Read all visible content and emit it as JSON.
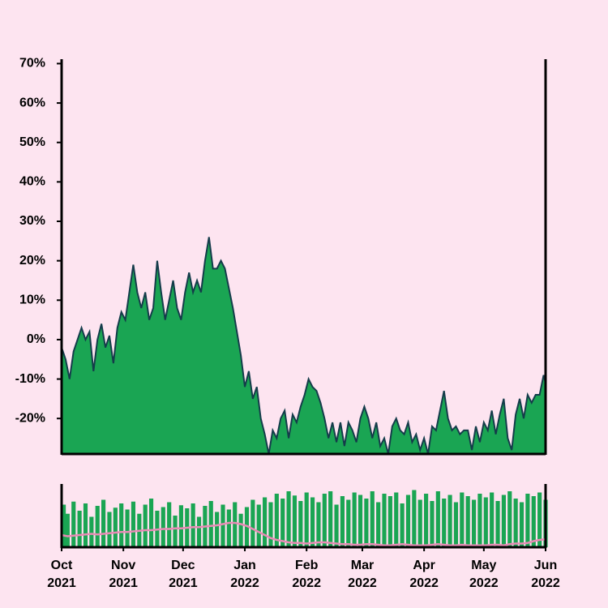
{
  "chart_data": [
    {
      "type": "area",
      "color": "#1aa553",
      "line_color": "#143c4a",
      "xlim": [
        0,
        243
      ],
      "ylim": [
        -29,
        70.5
      ],
      "yticks": [
        {
          "value": -20,
          "label": "-20%"
        },
        {
          "value": -10,
          "label": "-10%"
        },
        {
          "value": 0,
          "label": "0%"
        },
        {
          "value": 10,
          "label": "10%"
        },
        {
          "value": 20,
          "label": "20%"
        },
        {
          "value": 30,
          "label": "30%"
        },
        {
          "value": 40,
          "label": "40%"
        },
        {
          "value": 50,
          "label": "50%"
        },
        {
          "value": 60,
          "label": "60%"
        },
        {
          "value": 70,
          "label": "70%"
        }
      ],
      "x": [
        0,
        2,
        4,
        6,
        8,
        10,
        12,
        14,
        16,
        18,
        20,
        22,
        24,
        26,
        28,
        30,
        32,
        34,
        36,
        38,
        40,
        42,
        44,
        46,
        48,
        50,
        52,
        54,
        56,
        58,
        60,
        62,
        64,
        66,
        68,
        70,
        72,
        74,
        76,
        78,
        80,
        82,
        84,
        86,
        88,
        90,
        92,
        94,
        96,
        98,
        100,
        102,
        104,
        106,
        108,
        110,
        112,
        114,
        116,
        118,
        120,
        122,
        124,
        126,
        128,
        130,
        132,
        134,
        136,
        138,
        140,
        142,
        144,
        146,
        148,
        150,
        152,
        154,
        156,
        158,
        160,
        162,
        164,
        166,
        168,
        170,
        172,
        174,
        176,
        178,
        180,
        182,
        184,
        186,
        188,
        190,
        192,
        194,
        196,
        198,
        200,
        202,
        204,
        206,
        208,
        210,
        212,
        214,
        216,
        218,
        220,
        222,
        224,
        226,
        228,
        230,
        232,
        234,
        236,
        238,
        240,
        242,
        243
      ],
      "values": [
        -2,
        -5,
        -10,
        -3,
        0,
        3,
        0,
        2,
        -8,
        0,
        4,
        -2,
        1,
        -6,
        3,
        7,
        5,
        12,
        19,
        12,
        8,
        12,
        5,
        8,
        20,
        12,
        5,
        10,
        15,
        8,
        5,
        12,
        17,
        12,
        15,
        12,
        20,
        26,
        18,
        18,
        20,
        18,
        13,
        8,
        2,
        -4,
        -12,
        -8,
        -15,
        -12,
        -20,
        -24,
        -29,
        -23,
        -25,
        -20,
        -18,
        -25,
        -19,
        -21,
        -17,
        -14,
        -10,
        -12,
        -13,
        -16,
        -20,
        -25,
        -21,
        -26,
        -21,
        -27,
        -21,
        -23,
        -26,
        -20,
        -17,
        -20,
        -25,
        -21,
        -27,
        -25,
        -29,
        -22,
        -20,
        -23,
        -24,
        -21,
        -26,
        -24,
        -28,
        -25,
        -29,
        -22,
        -23,
        -18,
        -13,
        -20,
        -23,
        -22,
        -24,
        -23,
        -23,
        -28,
        -22,
        -26,
        -21,
        -23,
        -18,
        -24,
        -19,
        -15,
        -25,
        -28,
        -19,
        -15,
        -20,
        -14,
        -16,
        -14,
        -14,
        -9,
        -11
      ]
    },
    {
      "type": "bar",
      "xlim": [
        0,
        243
      ],
      "ylim": [
        0,
        100
      ],
      "xticks": [
        {
          "value": 0,
          "label": "Oct 2021"
        },
        {
          "value": 31,
          "label": "Nov 2021"
        },
        {
          "value": 61,
          "label": "Dec 2021"
        },
        {
          "value": 92,
          "label": "Jan 2022"
        },
        {
          "value": 123,
          "label": "Feb 2022"
        },
        {
          "value": 151,
          "label": "Mar 2022"
        },
        {
          "value": 182,
          "label": "Apr 2022"
        },
        {
          "value": 212,
          "label": "May 2022"
        },
        {
          "value": 243,
          "label": "Jun 2022"
        }
      ],
      "x": [
        0,
        3,
        6,
        9,
        12,
        15,
        18,
        21,
        24,
        27,
        30,
        33,
        36,
        39,
        42,
        45,
        48,
        51,
        54,
        57,
        60,
        63,
        66,
        69,
        72,
        75,
        78,
        81,
        84,
        87,
        90,
        93,
        96,
        99,
        102,
        105,
        108,
        111,
        114,
        117,
        120,
        123,
        126,
        129,
        132,
        135,
        138,
        141,
        144,
        147,
        150,
        153,
        156,
        159,
        162,
        165,
        168,
        171,
        174,
        177,
        180,
        183,
        186,
        189,
        192,
        195,
        198,
        201,
        204,
        207,
        210,
        213,
        216,
        219,
        222,
        225,
        228,
        231,
        234,
        237,
        240,
        243
      ],
      "series": [
        {
          "type": "bar",
          "color": "#1aa553",
          "values": [
            70,
            55,
            75,
            60,
            72,
            50,
            68,
            78,
            58,
            65,
            72,
            62,
            75,
            55,
            70,
            80,
            60,
            66,
            74,
            52,
            69,
            64,
            72,
            50,
            68,
            76,
            58,
            70,
            62,
            74,
            55,
            66,
            78,
            70,
            82,
            74,
            88,
            80,
            92,
            85,
            76,
            90,
            82,
            74,
            88,
            92,
            70,
            84,
            78,
            90,
            86,
            80,
            92,
            74,
            88,
            84,
            90,
            72,
            86,
            94,
            78,
            88,
            76,
            92,
            80,
            86,
            74,
            90,
            84,
            78,
            88,
            82,
            90,
            76,
            86,
            92,
            80,
            74,
            88,
            84,
            90,
            78
          ]
        },
        {
          "type": "line",
          "color": "#e88bb5",
          "values": [
            20,
            18,
            19,
            20,
            21,
            22,
            21,
            22,
            23,
            24,
            25,
            25,
            26,
            27,
            28,
            28,
            29,
            30,
            30,
            31,
            31,
            32,
            33,
            33,
            34,
            35,
            36,
            38,
            40,
            40,
            38,
            35,
            30,
            25,
            20,
            15,
            12,
            10,
            8,
            7,
            7,
            6,
            7,
            8,
            8,
            7,
            6,
            5,
            5,
            4,
            4,
            5,
            5,
            4,
            3,
            3,
            4,
            5,
            4,
            3,
            3,
            3,
            4,
            5,
            4,
            3,
            3,
            4,
            3,
            3,
            3,
            3,
            4,
            4,
            3,
            5,
            6,
            6,
            7,
            10,
            12,
            13
          ]
        }
      ]
    }
  ]
}
